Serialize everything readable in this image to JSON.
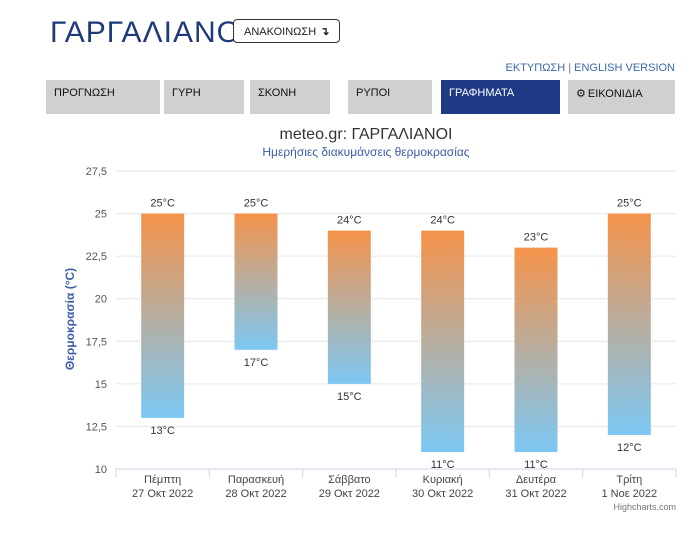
{
  "header": {
    "title": "ΓΑΡΓΑΛΙΑΝΟΙ",
    "notice_button": "ΑΝΑΚΟΙΝΩΣΗ",
    "notice_arrow": "↴",
    "print_link": "ΕΚΤΥΠΩΣΗ",
    "separator": "|",
    "english_link": "ENGLISH VERSION"
  },
  "tabs": [
    {
      "label": "ΠΡΟΓΝΩΣΗ",
      "active": false
    },
    {
      "label": "ΓΥΡΗ",
      "active": false
    },
    {
      "label": "ΣΚΟΝΗ",
      "active": false
    },
    {
      "label": "ΡΥΠΟΙ",
      "active": false
    },
    {
      "label": "ΓΡΑΦΗΜΑΤΑ",
      "active": true
    },
    {
      "label": "ΕΙΚΟΝΙΔΙΑ",
      "active": false,
      "icon": "gear-icon"
    }
  ],
  "colors": {
    "title": "#1f3a7a",
    "active_tab": "#1f3a86",
    "bar_top": "#f5934a",
    "bar_bottom": "#7cc8f4",
    "ylabel": "#3a5ea8"
  },
  "chart_data": {
    "type": "columnrange",
    "title": "meteo.gr: ΓΑΡΓΑΛΙΑΝΟΙ",
    "subtitle": "Ημερήσιες διακυμάνσεις θερμοκρασίας",
    "ylabel": "Θερμοκρασία (°C)",
    "ylim": [
      10,
      27.5
    ],
    "yticks": [
      "10",
      "12,5",
      "15",
      "17,5",
      "20",
      "22,5",
      "25",
      "27,5"
    ],
    "ytick_values": [
      10,
      12.5,
      15,
      17.5,
      20,
      22.5,
      25,
      27.5
    ],
    "unit": "°C",
    "credits": "Highcharts.com",
    "categories": [
      {
        "day": "Πέμπτη",
        "date": "27 Οκτ 2022"
      },
      {
        "day": "Παρασκευή",
        "date": "28 Οκτ 2022"
      },
      {
        "day": "Σάββατο",
        "date": "29 Οκτ 2022"
      },
      {
        "day": "Κυριακή",
        "date": "30 Οκτ 2022"
      },
      {
        "day": "Δευτέρα",
        "date": "31 Οκτ 2022"
      },
      {
        "day": "Τρίτη",
        "date": "1 Νοε 2022"
      }
    ],
    "high": [
      25,
      25,
      24,
      24,
      23,
      25
    ],
    "low": [
      13,
      17,
      15,
      11,
      11,
      12
    ]
  }
}
